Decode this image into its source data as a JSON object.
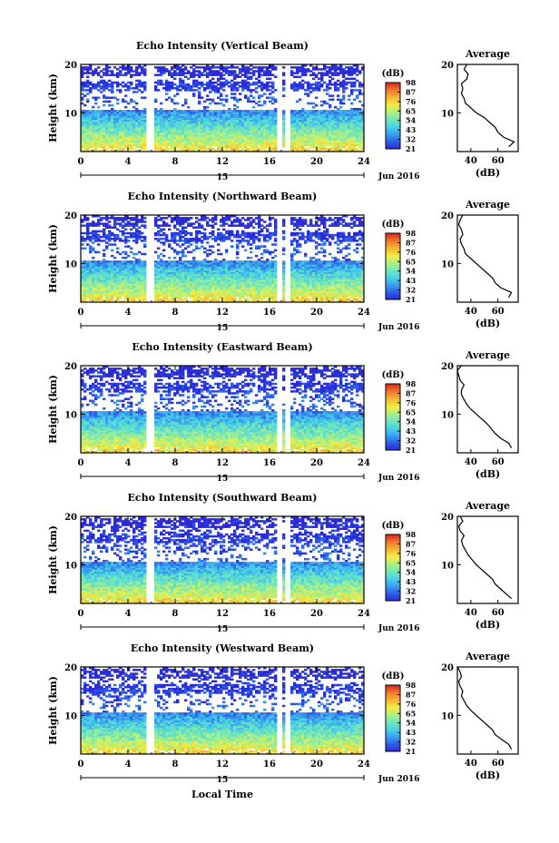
{
  "figure": {
    "footer_xlabel": "Local Time",
    "ylabel": "Height (km)",
    "date_label": "Jun 2016",
    "day_label": "15",
    "avg_title": "Average",
    "avg_xlabel": "(dB)",
    "colorbar_unit": "(dB)"
  },
  "colors": {
    "colormap": [
      "#2a2ad6",
      "#2f5de8",
      "#39a0f0",
      "#49d2e8",
      "#72e6b8",
      "#aef080",
      "#f4ec42",
      "#f8b436",
      "#f07a2c",
      "#d82a1e"
    ],
    "profile_line": "#000000",
    "axis": "#000000"
  },
  "chart_data": [
    {
      "type": "heatmap",
      "title": "Echo Intensity (Vertical Beam)",
      "xlabel": "Local Time",
      "ylabel": "Height (km)",
      "xlim": [
        0,
        24
      ],
      "ylim": [
        2,
        20
      ],
      "xticks": [
        0,
        4,
        8,
        12,
        16,
        20,
        24
      ],
      "yticks": [
        10,
        20
      ],
      "colorbar_ticks": [
        21,
        32,
        43,
        54,
        65,
        76,
        87,
        98
      ],
      "data_gaps_hours": [
        [
          5.6,
          6.2
        ],
        [
          16.6,
          17.1
        ],
        [
          17.3,
          17.7
        ]
      ],
      "average_profile": {
        "xlim": [
          30,
          75
        ],
        "xticks": [
          40,
          60
        ],
        "height_km": [
          3,
          4,
          5,
          6,
          7,
          8,
          9,
          10,
          11,
          12,
          13,
          14,
          15,
          16,
          17,
          18,
          19,
          20
        ],
        "db": [
          68,
          72,
          64,
          60,
          58,
          54,
          50,
          44,
          40,
          36,
          35,
          33,
          34,
          33,
          37,
          38,
          35,
          37
        ]
      }
    },
    {
      "type": "heatmap",
      "title": "Echo Intensity (Northward Beam)",
      "xlabel": "Local Time",
      "ylabel": "Height (km)",
      "xlim": [
        0,
        24
      ],
      "ylim": [
        2,
        20
      ],
      "xticks": [
        0,
        4,
        8,
        12,
        16,
        20,
        24
      ],
      "yticks": [
        10,
        20
      ],
      "colorbar_ticks": [
        21,
        32,
        43,
        54,
        65,
        76,
        87,
        98
      ],
      "data_gaps_hours": [
        [
          5.6,
          6.2
        ],
        [
          16.6,
          17.1
        ],
        [
          17.3,
          17.7
        ]
      ],
      "average_profile": {
        "xlim": [
          30,
          75
        ],
        "xticks": [
          40,
          60
        ],
        "height_km": [
          3,
          4,
          5,
          6,
          7,
          8,
          9,
          10,
          11,
          12,
          13,
          14,
          15,
          16,
          17,
          18,
          19,
          20
        ],
        "db": [
          68,
          70,
          62,
          58,
          56,
          52,
          48,
          44,
          40,
          36,
          35,
          33,
          32,
          34,
          33,
          31,
          32,
          34
        ]
      }
    },
    {
      "type": "heatmap",
      "title": "Echo Intensity (Eastward Beam)",
      "xlabel": "Local Time",
      "ylabel": "Height (km)",
      "xlim": [
        0,
        24
      ],
      "ylim": [
        2,
        20
      ],
      "xticks": [
        0,
        4,
        8,
        12,
        16,
        20,
        24
      ],
      "yticks": [
        10,
        20
      ],
      "colorbar_ticks": [
        21,
        32,
        43,
        54,
        65,
        76,
        87,
        98
      ],
      "data_gaps_hours": [
        [
          5.6,
          6.2
        ],
        [
          16.6,
          17.1
        ],
        [
          17.3,
          17.7
        ]
      ],
      "average_profile": {
        "xlim": [
          30,
          75
        ],
        "xticks": [
          40,
          60
        ],
        "height_km": [
          3,
          4,
          5,
          6,
          7,
          8,
          9,
          10,
          11,
          12,
          13,
          14,
          15,
          16,
          17,
          18,
          19,
          20
        ],
        "db": [
          70,
          68,
          62,
          58,
          55,
          52,
          48,
          44,
          40,
          37,
          35,
          33,
          33,
          35,
          32,
          31,
          30,
          33
        ]
      }
    },
    {
      "type": "heatmap",
      "title": "Echo Intensity (Southward Beam)",
      "xlabel": "Local Time",
      "ylabel": "Height (km)",
      "xlim": [
        0,
        24
      ],
      "ylim": [
        2,
        20
      ],
      "xticks": [
        0,
        4,
        8,
        12,
        16,
        20,
        24
      ],
      "yticks": [
        10,
        20
      ],
      "colorbar_ticks": [
        21,
        32,
        43,
        54,
        65,
        76,
        87,
        98
      ],
      "data_gaps_hours": [
        [
          5.6,
          6.2
        ],
        [
          16.6,
          17.1
        ],
        [
          17.3,
          17.7
        ]
      ],
      "average_profile": {
        "xlim": [
          30,
          75
        ],
        "xticks": [
          40,
          60
        ],
        "height_km": [
          3,
          4,
          5,
          6,
          7,
          8,
          9,
          10,
          11,
          12,
          13,
          14,
          15,
          16,
          17,
          18,
          19,
          20
        ],
        "db": [
          70,
          66,
          62,
          58,
          56,
          52,
          48,
          44,
          41,
          38,
          36,
          34,
          33,
          35,
          32,
          31,
          34,
          32
        ]
      }
    },
    {
      "type": "heatmap",
      "title": "Echo Intensity (Westward Beam)",
      "xlabel": "Local Time",
      "ylabel": "Height (km)",
      "xlim": [
        0,
        24
      ],
      "ylim": [
        2,
        20
      ],
      "xticks": [
        0,
        4,
        8,
        12,
        16,
        20,
        24
      ],
      "yticks": [
        10,
        20
      ],
      "colorbar_ticks": [
        21,
        32,
        43,
        54,
        65,
        76,
        87,
        98
      ],
      "data_gaps_hours": [
        [
          5.6,
          6.2
        ],
        [
          16.6,
          17.1
        ],
        [
          17.3,
          17.7
        ]
      ],
      "average_profile": {
        "xlim": [
          30,
          75
        ],
        "xticks": [
          40,
          60
        ],
        "height_km": [
          3,
          4,
          5,
          6,
          7,
          8,
          9,
          10,
          11,
          12,
          13,
          14,
          15,
          16,
          17,
          18,
          19,
          20
        ],
        "db": [
          70,
          68,
          63,
          58,
          56,
          52,
          48,
          44,
          40,
          37,
          35,
          33,
          34,
          32,
          31,
          33,
          32,
          30
        ]
      }
    }
  ]
}
